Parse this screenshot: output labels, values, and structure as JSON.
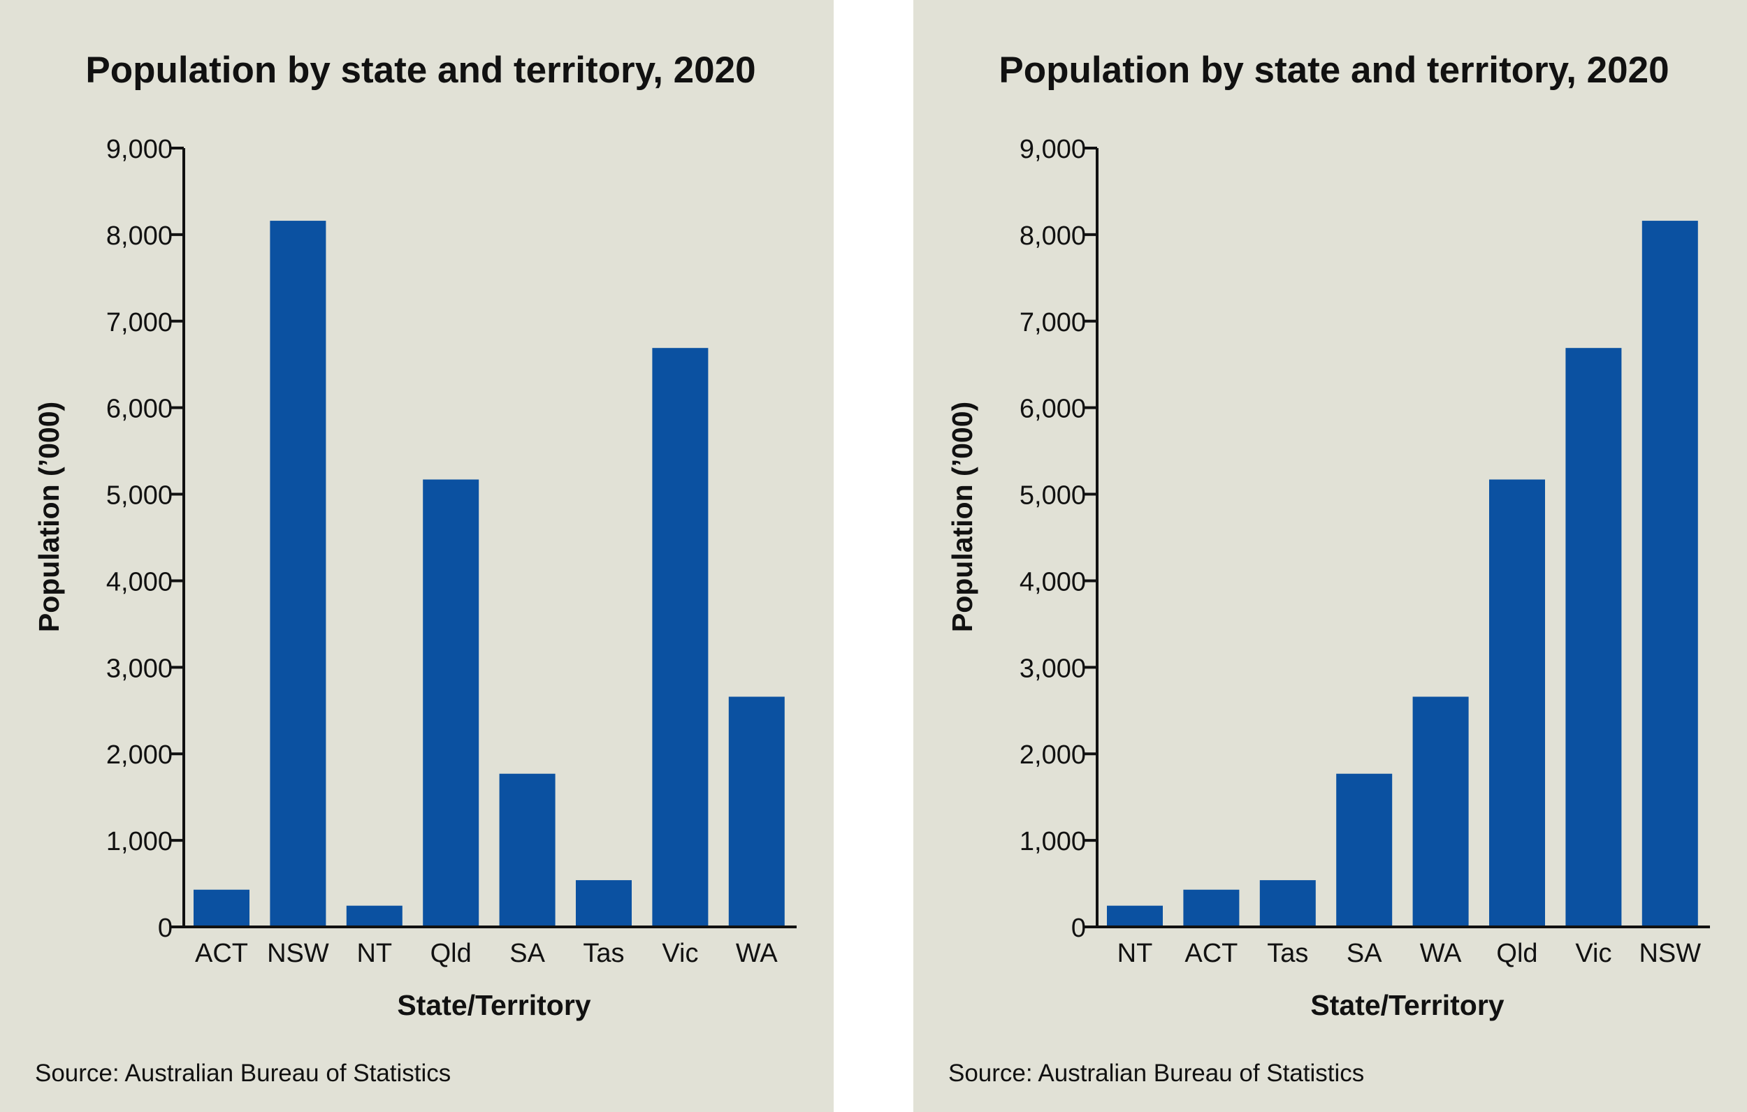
{
  "colors": {
    "background": "#e1e1d6",
    "bar": "#0b51a1",
    "text": "#111111",
    "axis": "#111111"
  },
  "chart_data": [
    {
      "type": "bar",
      "title": "Population by state and territory, 2020",
      "xlabel": "State/Territory",
      "ylabel": "Population (’000)",
      "source": "Source: Australian Bureau of Statistics",
      "ylim": [
        0,
        9000
      ],
      "yticks": [
        0,
        1000,
        2000,
        3000,
        4000,
        5000,
        6000,
        7000,
        8000,
        9000
      ],
      "ytick_labels": [
        "0",
        "1,000",
        "2,000",
        "3,000",
        "4,000",
        "5,000",
        "6,000",
        "7,000",
        "8,000",
        "9,000"
      ],
      "categories": [
        "ACT",
        "NSW",
        "NT",
        "Qld",
        "SA",
        "Tas",
        "Vic",
        "WA"
      ],
      "values": [
        430,
        8160,
        245,
        5170,
        1770,
        540,
        6690,
        2660
      ],
      "grid": false,
      "legend": false
    },
    {
      "type": "bar",
      "title": "Population by state and territory, 2020",
      "xlabel": "State/Territory",
      "ylabel": "Population (’000)",
      "source": "Source: Australian Bureau of Statistics",
      "ylim": [
        0,
        9000
      ],
      "yticks": [
        0,
        1000,
        2000,
        3000,
        4000,
        5000,
        6000,
        7000,
        8000,
        9000
      ],
      "ytick_labels": [
        "0",
        "1,000",
        "2,000",
        "3,000",
        "4,000",
        "5,000",
        "6,000",
        "7,000",
        "8,000",
        "9,000"
      ],
      "categories": [
        "NT",
        "ACT",
        "Tas",
        "SA",
        "WA",
        "Qld",
        "Vic",
        "NSW"
      ],
      "values": [
        245,
        430,
        540,
        1770,
        2660,
        5170,
        6690,
        8160
      ],
      "grid": false,
      "legend": false
    }
  ]
}
